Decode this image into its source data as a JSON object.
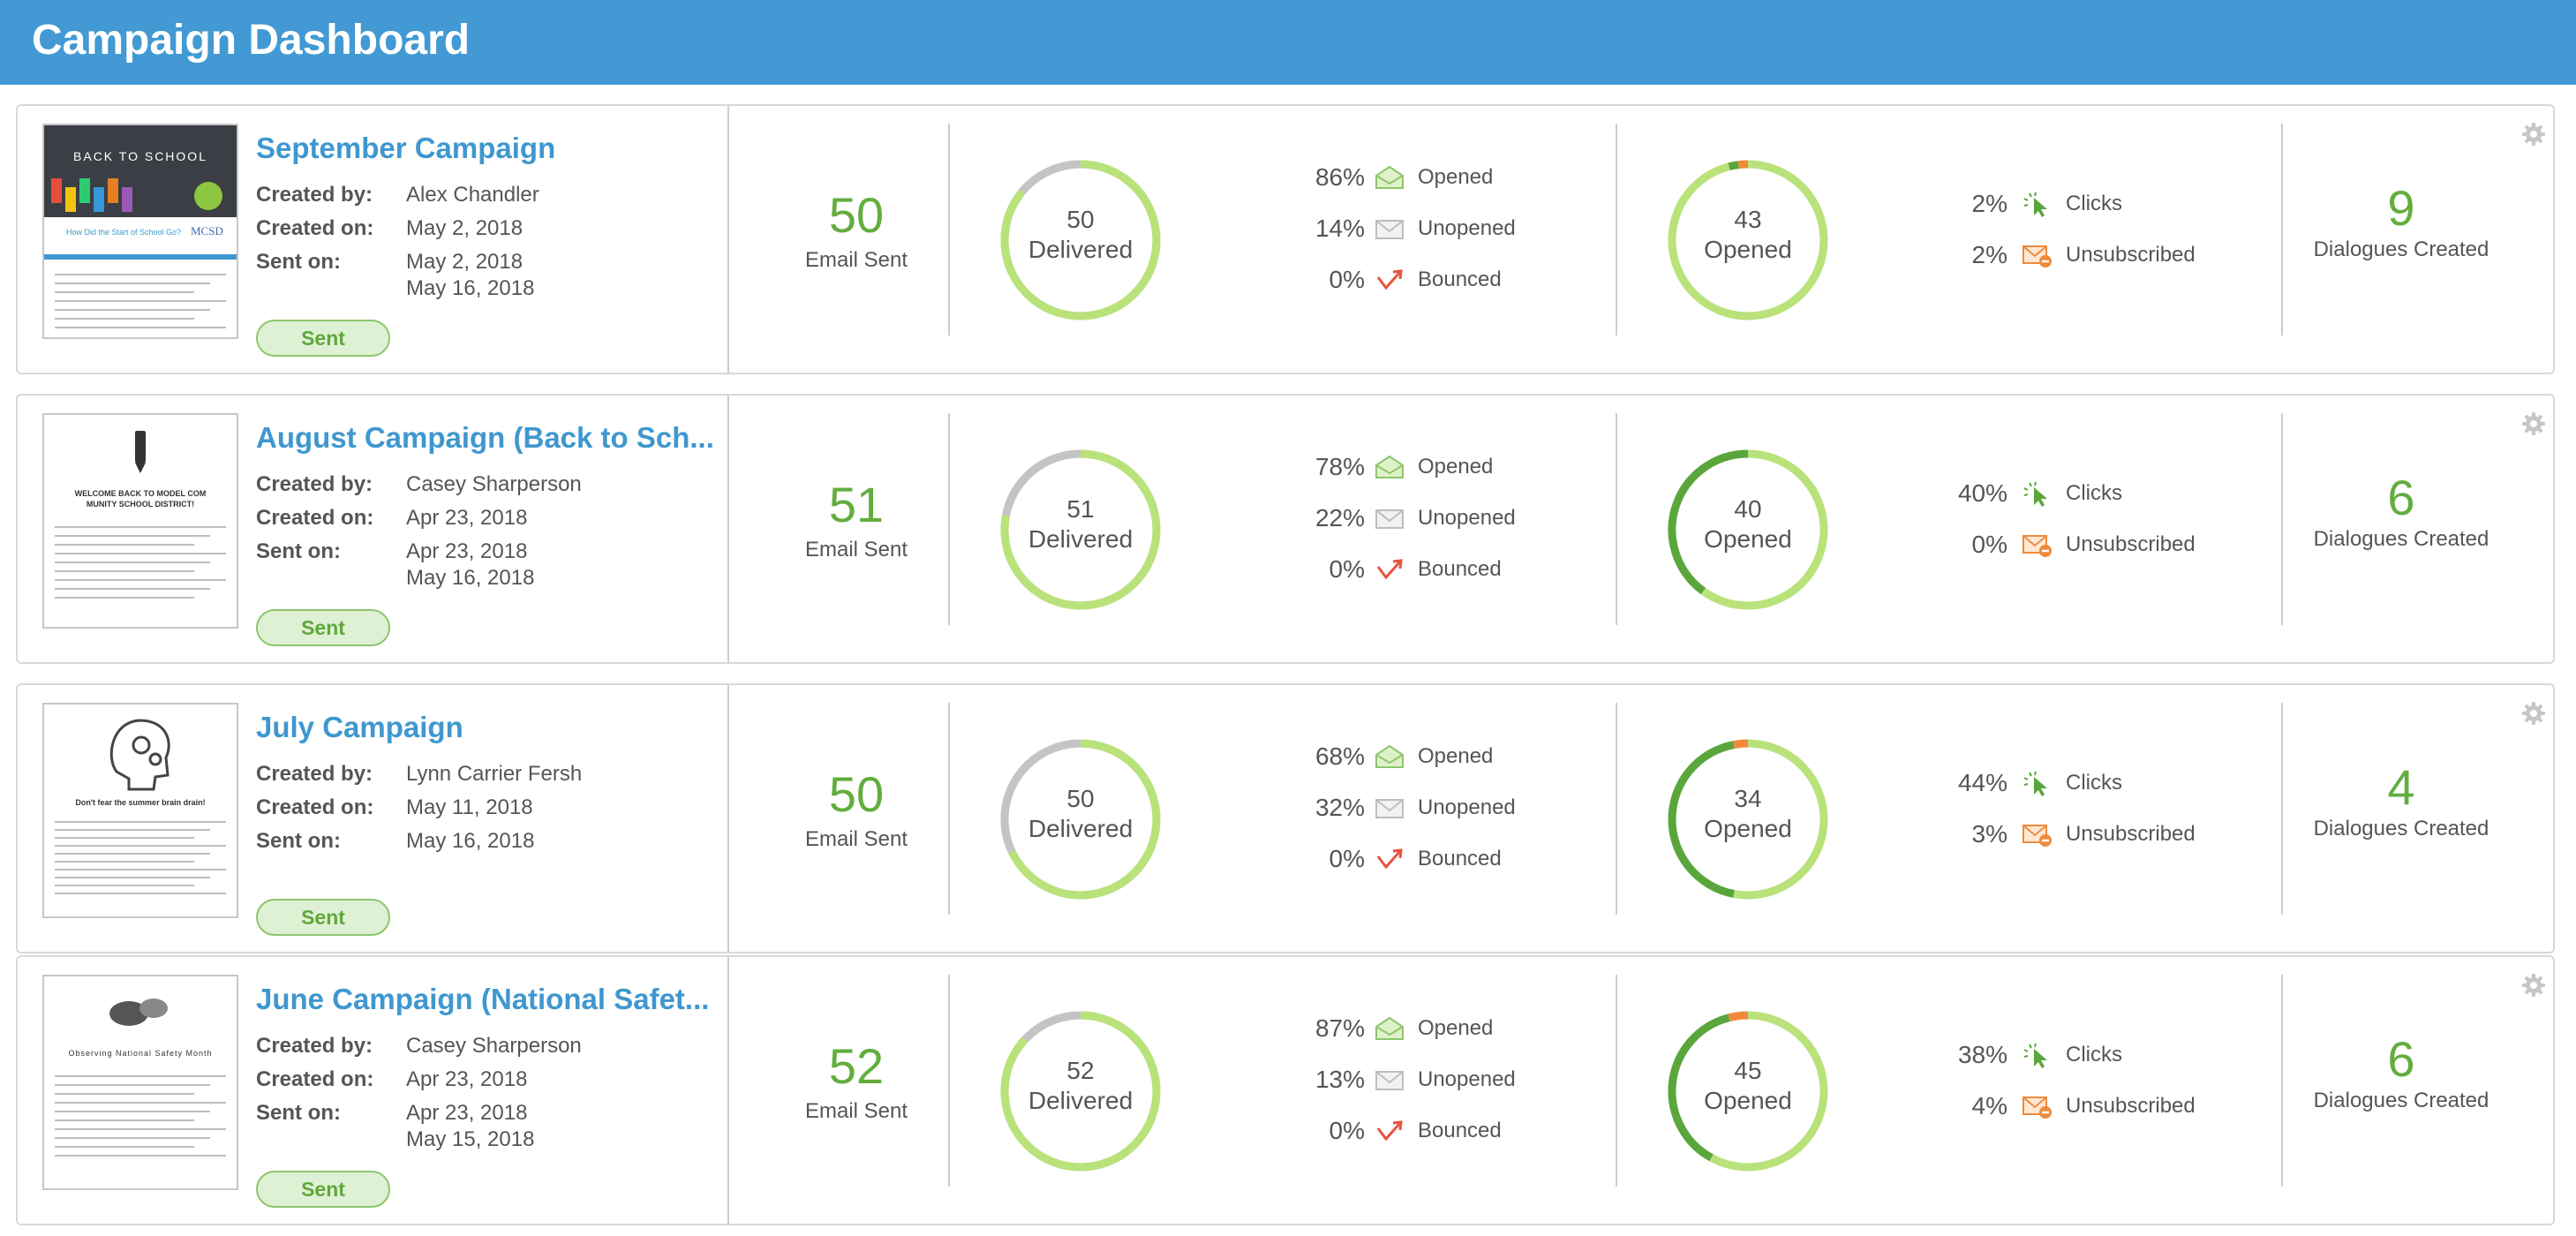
{
  "header": {
    "title": "Campaign Dashboard"
  },
  "labels": {
    "created_by": "Created by:",
    "created_on": "Created on:",
    "sent_on": "Sent on:",
    "email_sent": "Email Sent",
    "delivered": "Delivered",
    "opened_center": "Opened",
    "opened": "Opened",
    "unopened": "Unopened",
    "bounced": "Bounced",
    "clicks": "Clicks",
    "unsubscribed": "Unsubscribed",
    "dialogues": "Dialogues Created"
  },
  "colors": {
    "accent": "#4299d3",
    "green": "#63ad3e",
    "light_green": "#b9e27a",
    "dark_green": "#5aa63c",
    "orange": "#f08a3a",
    "gray": "#c4c4c4"
  },
  "campaigns": [
    {
      "title": "September Campaign",
      "thumb_heading": "BACK TO SCHOOL",
      "thumb_subtitle": "How Did the Start of School Go?",
      "thumb_logo": "MCSD",
      "created_by": "Alex Chandler",
      "created_on": "May 2, 2018",
      "sent_on_1": "May 2, 2018",
      "sent_on_2": "May 16, 2018",
      "status": "Sent",
      "email_sent": "50",
      "delivered": "50",
      "opened_pct": "86%",
      "unopened_pct": "14%",
      "bounced_pct": "0%",
      "opened_count": "43",
      "clicks_pct": "2%",
      "unsub_pct": "2%",
      "dialogues": "9",
      "delivered_fraction": 0.86,
      "clicks_fraction": 0.02,
      "unsub_fraction": 0.02
    },
    {
      "title": "August Campaign (Back to Sch...",
      "thumb_heading": "WELCOME BACK TO MODEL COMMUNITY SCHOOL DISTRICT!",
      "thumb_subtitle": "",
      "thumb_logo": "",
      "created_by": "Casey Sharperson",
      "created_on": "Apr 23, 2018",
      "sent_on_1": "Apr 23, 2018",
      "sent_on_2": "May 16, 2018",
      "status": "Sent",
      "email_sent": "51",
      "delivered": "51",
      "opened_pct": "78%",
      "unopened_pct": "22%",
      "bounced_pct": "0%",
      "opened_count": "40",
      "clicks_pct": "40%",
      "unsub_pct": "0%",
      "dialogues": "6",
      "delivered_fraction": 0.78,
      "clicks_fraction": 0.4,
      "unsub_fraction": 0.0
    },
    {
      "title": "July Campaign",
      "thumb_heading": "Don't fear the summer brain drain!",
      "thumb_subtitle": "",
      "thumb_logo": "",
      "created_by": "Lynn Carrier Fersh",
      "created_on": "May 11, 2018",
      "sent_on_1": "May 16, 2018",
      "sent_on_2": "",
      "status": "Sent",
      "email_sent": "50",
      "delivered": "50",
      "opened_pct": "68%",
      "unopened_pct": "32%",
      "bounced_pct": "0%",
      "opened_count": "34",
      "clicks_pct": "44%",
      "unsub_pct": "3%",
      "dialogues": "4",
      "delivered_fraction": 0.68,
      "clicks_fraction": 0.44,
      "unsub_fraction": 0.03
    },
    {
      "title": "June Campaign (National Safet...",
      "thumb_heading": "Observing National Safety Month",
      "thumb_subtitle": "",
      "thumb_logo": "",
      "created_by": "Casey Sharperson",
      "created_on": "Apr 23, 2018",
      "sent_on_1": "Apr 23, 2018",
      "sent_on_2": "May 15, 2018",
      "status": "Sent",
      "email_sent": "52",
      "delivered": "52",
      "opened_pct": "87%",
      "unopened_pct": "13%",
      "bounced_pct": "0%",
      "opened_count": "45",
      "clicks_pct": "38%",
      "unsub_pct": "4%",
      "dialogues": "6",
      "delivered_fraction": 0.87,
      "clicks_fraction": 0.38,
      "unsub_fraction": 0.04
    }
  ]
}
